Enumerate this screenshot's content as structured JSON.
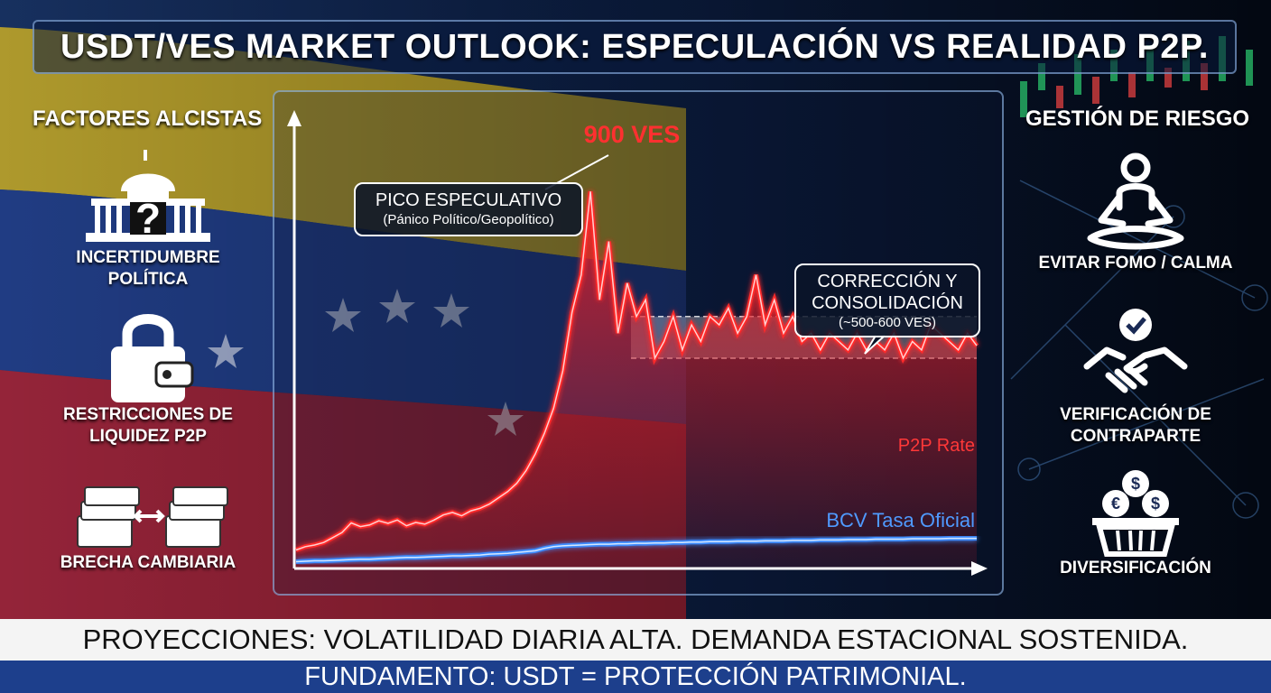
{
  "title": "USDT/VES MARKET OUTLOOK: ESPECULACIÓN VS REALIDAD P2P.",
  "left_panel": {
    "heading": "FACTORES ALCISTAS",
    "items": [
      {
        "label_1": "INCERTIDUMBRE",
        "label_2": "POLÍTICA",
        "icon": "government-building-question-icon"
      },
      {
        "label_1": "RESTRICCIONES DE",
        "label_2": "LIQUIDEZ P2P",
        "icon": "padlock-wallet-icon"
      },
      {
        "label_1": "BRECHA CAMBIARIA",
        "label_2": "",
        "icon": "money-stacks-exchange-icon"
      }
    ]
  },
  "right_panel": {
    "heading": "GESTIÓN DE RIESGO",
    "items": [
      {
        "label_1": "EVITAR FOMO / CALMA",
        "label_2": "",
        "icon": "meditation-icon"
      },
      {
        "label_1": "VERIFICACIÓN DE",
        "label_2": "CONTRAPARTE",
        "icon": "handshake-check-icon"
      },
      {
        "label_1": "DIVERSIFICACIÓN",
        "label_2": "",
        "icon": "currency-basket-icon"
      }
    ]
  },
  "annotations": {
    "peak_value": "900 VES",
    "peak_title": "PICO ESPECULATIVO",
    "peak_sub": "(Pánico Político/Geopolítico)",
    "corr_title_1": "CORRECCIÓN Y",
    "corr_title_2": "CONSOLIDACIÓN",
    "corr_sub": "(~500-600 VES)"
  },
  "chart_data": {
    "type": "line",
    "ylim": [
      0,
      1000
    ],
    "highlight_band": [
      500,
      600
    ],
    "series": [
      {
        "name": "P2P Rate",
        "color": "#ff2a2a",
        "values": [
          40,
          48,
          52,
          58,
          70,
          82,
          105,
          96,
          100,
          110,
          104,
          112,
          98,
          106,
          102,
          112,
          124,
          130,
          122,
          134,
          140,
          150,
          165,
          180,
          200,
          230,
          270,
          320,
          380,
          470,
          610,
          700,
          900,
          640,
          780,
          560,
          680,
          600,
          640,
          500,
          540,
          600,
          520,
          580,
          540,
          600,
          580,
          620,
          560,
          600,
          700,
          580,
          640,
          560,
          600,
          540,
          560,
          520,
          560,
          540,
          520,
          560,
          520,
          540,
          520,
          560,
          500,
          540,
          520,
          580,
          560,
          540,
          520,
          560,
          530
        ]
      },
      {
        "name": "BCV Tasa Oficial",
        "color": "#3d8cff",
        "values": [
          12,
          13,
          14,
          14,
          15,
          16,
          17,
          18,
          18,
          19,
          20,
          21,
          22,
          22,
          23,
          24,
          25,
          26,
          26,
          27,
          28,
          30,
          31,
          32,
          34,
          36,
          38,
          44,
          48,
          50,
          51,
          52,
          53,
          54,
          54,
          55,
          55,
          56,
          56,
          57,
          57,
          58,
          58,
          59,
          59,
          60,
          60,
          60,
          61,
          61,
          61,
          62,
          62,
          62,
          63,
          63,
          63,
          64,
          64,
          64,
          65,
          65,
          65,
          66,
          66,
          66,
          66,
          67,
          67,
          67,
          67,
          68,
          68,
          68,
          68
        ]
      }
    ]
  },
  "bottom": {
    "line1": "PROYECCIONES: VOLATILIDAD DIARIA ALTA. DEMANDA ESTACIONAL SOSTENIDA.",
    "line2": "FUNDAMENTO: USDT = PROTECCIÓN PATRIMONIAL."
  }
}
